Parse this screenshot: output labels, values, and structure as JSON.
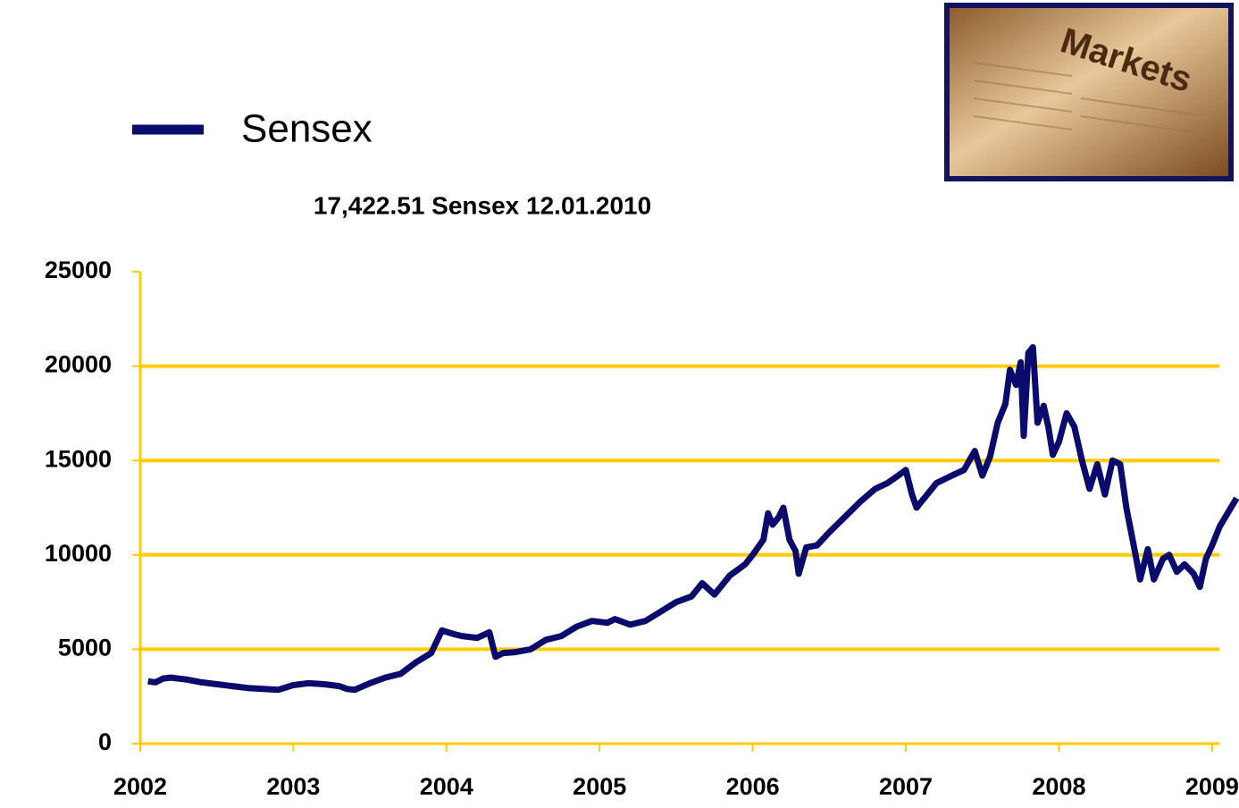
{
  "chart_data": {
    "type": "line",
    "subtitle": "17,422.51 Sensex 12.01.2010",
    "x": [
      2002.05,
      2002.1,
      2002.15,
      2002.2,
      2002.3,
      2002.4,
      2002.5,
      2002.6,
      2002.7,
      2002.8,
      2002.9,
      2003.0,
      2003.1,
      2003.2,
      2003.3,
      2003.35,
      2003.4,
      2003.5,
      2003.6,
      2003.7,
      2003.8,
      2003.9,
      2003.97,
      2004.05,
      2004.1,
      2004.2,
      2004.28,
      2004.32,
      2004.37,
      2004.45,
      2004.55,
      2004.65,
      2004.75,
      2004.85,
      2004.95,
      2005.05,
      2005.1,
      2005.2,
      2005.3,
      2005.4,
      2005.5,
      2005.6,
      2005.67,
      2005.75,
      2005.85,
      2005.95,
      2006.0,
      2006.07,
      2006.1,
      2006.13,
      2006.17,
      2006.2,
      2006.24,
      2006.28,
      2006.3,
      2006.35,
      2006.42,
      2006.5,
      2006.6,
      2006.7,
      2006.8,
      2006.88,
      2006.95,
      2007.0,
      2007.04,
      2007.07,
      2007.12,
      2007.2,
      2007.3,
      2007.38,
      2007.45,
      2007.5,
      2007.55,
      2007.6,
      2007.65,
      2007.68,
      2007.72,
      2007.75,
      2007.77,
      2007.8,
      2007.83,
      2007.86,
      2007.9,
      2007.93,
      2007.96,
      2008.0,
      2008.05,
      2008.1,
      2008.15,
      2008.2,
      2008.25,
      2008.3,
      2008.35,
      2008.4,
      2008.44,
      2008.5,
      2008.53,
      2008.58,
      2008.62,
      2008.68,
      2008.72,
      2008.77,
      2008.82,
      2008.88,
      2008.92,
      2008.96,
      2009.0,
      2009.05,
      2009.16
    ],
    "series": [
      {
        "name": "Sensex",
        "color": "#0b0b6e",
        "values": [
          3300,
          3250,
          3450,
          3500,
          3400,
          3250,
          3150,
          3050,
          2950,
          2900,
          2850,
          3100,
          3200,
          3150,
          3050,
          2900,
          2850,
          3200,
          3500,
          3700,
          4300,
          4800,
          6000,
          5800,
          5700,
          5600,
          5900,
          4600,
          4800,
          4850,
          5000,
          5500,
          5700,
          6200,
          6500,
          6400,
          6600,
          6300,
          6500,
          7000,
          7500,
          7800,
          8500,
          7900,
          8900,
          9500,
          10000,
          10800,
          12200,
          11600,
          12000,
          12500,
          10800,
          10200,
          9000,
          10400,
          10500,
          11200,
          12000,
          12800,
          13500,
          13800,
          14200,
          14500,
          13200,
          12500,
          13000,
          13800,
          14200,
          14500,
          15500,
          14200,
          15200,
          17000,
          18000,
          19800,
          19000,
          20200,
          16300,
          20700,
          21000,
          17000,
          17900,
          16800,
          15300,
          16000,
          17500,
          16800,
          15000,
          13500,
          14800,
          13200,
          15000,
          14800,
          12500,
          10000,
          8700,
          10300,
          8700,
          9800,
          10000,
          9100,
          9500,
          9000,
          8300,
          9800,
          10500,
          11500,
          13000
        ]
      }
    ],
    "xlim": [
      2002,
      2009.17
    ],
    "xticks": [
      2002,
      2003,
      2004,
      2005,
      2006,
      2007,
      2008,
      2009
    ],
    "ylim": [
      0,
      25000
    ],
    "yticks": [
      0,
      5000,
      10000,
      15000,
      20000,
      25000
    ],
    "grid": true,
    "grid_color": "#ffcc00"
  },
  "image": {
    "text": "Markets"
  }
}
